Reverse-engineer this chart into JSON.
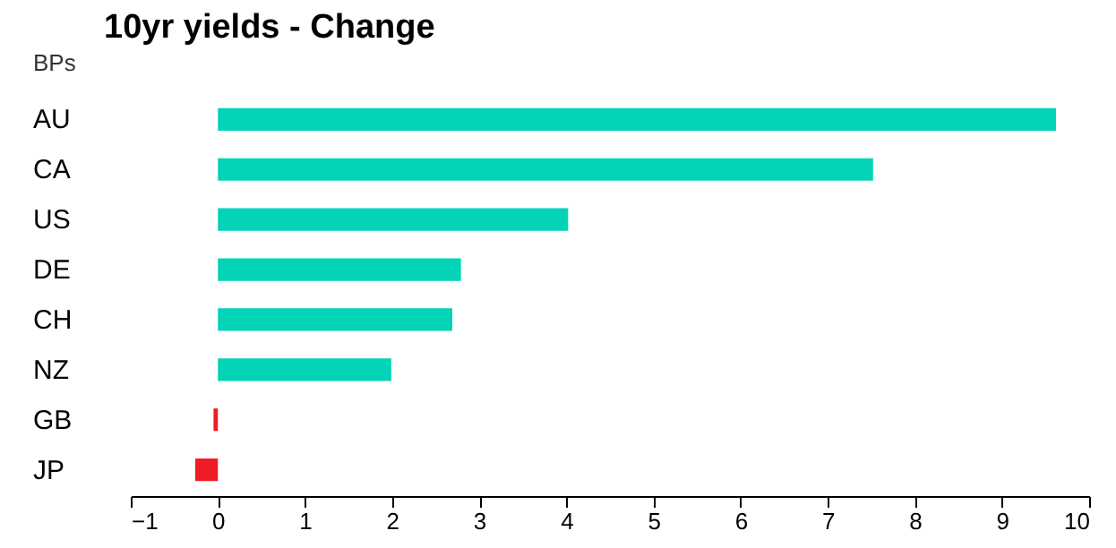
{
  "chart_data": {
    "type": "bar",
    "orientation": "horizontal",
    "title": "10yr yields - Change",
    "ylabel": "BPs",
    "categories": [
      "AU",
      "CA",
      "US",
      "DE",
      "CH",
      "NZ",
      "GB",
      "JP"
    ],
    "values": [
      9.62,
      7.52,
      4.02,
      2.79,
      2.69,
      1.99,
      -0.05,
      -0.26
    ],
    "colors": [
      "#03d3b7",
      "#03d3b7",
      "#03d3b7",
      "#03d3b7",
      "#03d3b7",
      "#03d3b7",
      "#ee1c25",
      "#ee1c25"
    ],
    "xlim": [
      -1,
      10
    ],
    "xticks": [
      -1,
      0,
      1,
      2,
      3,
      4,
      5,
      6,
      7,
      8,
      9,
      10
    ],
    "grid": false
  }
}
